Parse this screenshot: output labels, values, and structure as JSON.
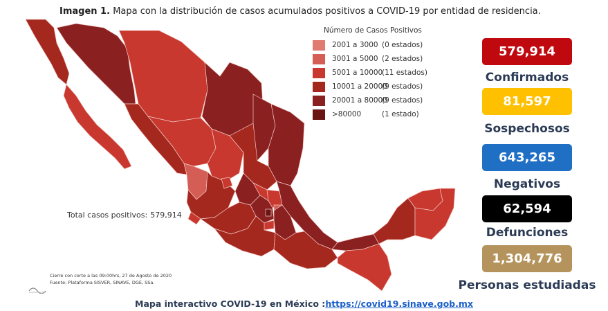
{
  "caption": {
    "label": "Imagen 1.",
    "text": "Mapa con la distribución de casos acumulados positivos a COVID-19 por entidad de residencia."
  },
  "legend": {
    "title": "Número de Casos Positivos",
    "items": [
      {
        "range": "2001 a   3000",
        "count": "(0 estados)",
        "color": "#e07b72"
      },
      {
        "range": "3001 a   5000",
        "count": "(2 estados)",
        "color": "#d45d55"
      },
      {
        "range": "5001 a 10000",
        "count": "(11 estados)",
        "color": "#c8382f"
      },
      {
        "range": "10001 a 20000",
        "count": "(9 estados)",
        "color": "#a5281f"
      },
      {
        "range": "20001 a 80000",
        "count": "(9 estados)",
        "color": "#8a2020"
      },
      {
        "range": ">80000",
        "count": "(1 estado)",
        "color": "#6a1414"
      }
    ]
  },
  "total": {
    "label": "Total casos positivos:",
    "value": "579,914"
  },
  "cutoff": {
    "line1": "Cierre con corte a las 09:00hrs, 27 de Agosto de 2020",
    "line2": "Fuente: Plataforma SISVER, SINAVE, DGE, SSa."
  },
  "stats": [
    {
      "value": "579,914",
      "label": "Confirmados",
      "bg": "#c0080f",
      "fg": "#ffffff"
    },
    {
      "value": "81,597",
      "label": "Sospechosos",
      "bg": "#ffc000",
      "fg": "#ffffff"
    },
    {
      "value": "643,265",
      "label": "Negativos",
      "bg": "#1f6fc4",
      "fg": "#ffffff"
    },
    {
      "value": "62,594",
      "label": "Defunciones",
      "bg": "#000000",
      "fg": "#ffffff"
    },
    {
      "value": "1,304,776",
      "label": "Personas estudiadas",
      "bg": "#b4935c",
      "fg": "#ffffff"
    }
  ],
  "footer": {
    "text": "Mapa interactivo COVID-19 en México :",
    "link": "https://covid19.sinave.gob.mx"
  }
}
